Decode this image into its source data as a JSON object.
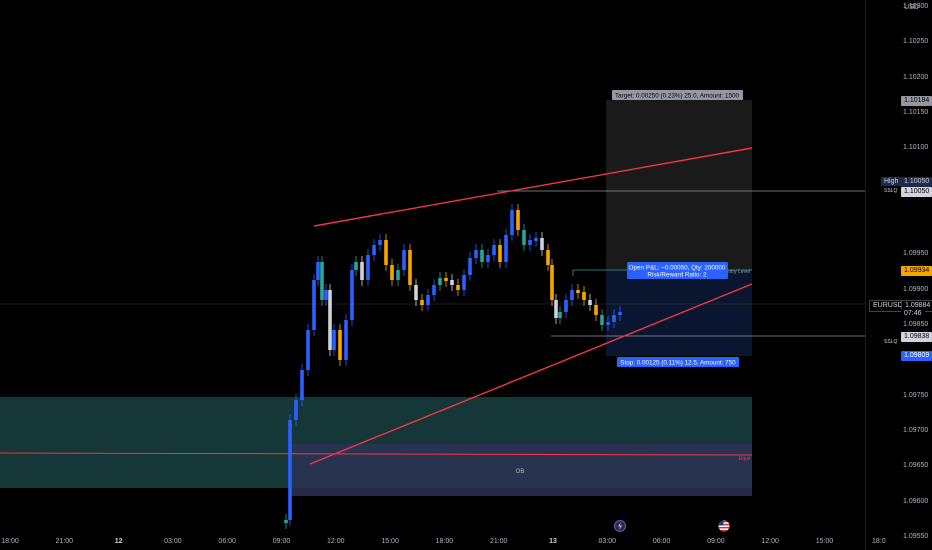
{
  "currency": "USD",
  "price_labels": [
    "1.10300",
    "1.10250",
    "1.10200",
    "1.10150",
    "1.10100",
    "1.09950",
    "1.09900",
    "1.09850",
    "1.09800",
    "1.09750",
    "1.09700",
    "1.09650",
    "1.09600",
    "1.09550"
  ],
  "price_values": [
    1.103,
    1.1025,
    1.102,
    1.1015,
    1.101,
    1.0995,
    1.099,
    1.0985,
    1.098,
    1.0975,
    1.097,
    1.0965,
    1.096,
    1.0955
  ],
  "time_labels": [
    {
      "text": "18:00",
      "bold": false,
      "slot": 0
    },
    {
      "text": "21:00",
      "bold": false,
      "slot": 1
    },
    {
      "text": "12",
      "bold": true,
      "slot": 2
    },
    {
      "text": "03:00",
      "bold": false,
      "slot": 3
    },
    {
      "text": "06:00",
      "bold": false,
      "slot": 4
    },
    {
      "text": "09:00",
      "bold": false,
      "slot": 5
    },
    {
      "text": "12:00",
      "bold": false,
      "slot": 6
    },
    {
      "text": "15:00",
      "bold": false,
      "slot": 7
    },
    {
      "text": "18:00",
      "bold": false,
      "slot": 8
    },
    {
      "text": "21:00",
      "bold": false,
      "slot": 9
    },
    {
      "text": "13",
      "bold": true,
      "slot": 10
    },
    {
      "text": "03:00",
      "bold": false,
      "slot": 11
    },
    {
      "text": "06:00",
      "bold": false,
      "slot": 12
    },
    {
      "text": "09:00",
      "bold": false,
      "slot": 13
    },
    {
      "text": "12:00",
      "bold": false,
      "slot": 14
    },
    {
      "text": "15:00",
      "bold": false,
      "slot": 15
    },
    {
      "text": "18:0",
      "bold": false,
      "slot": 16
    }
  ],
  "tags": {
    "target_price": "1.10184",
    "high_label": "High",
    "high_price": "1.10050",
    "ssl_top_short": "SSLQ",
    "high_line_price": "1.10050",
    "entry_price": "1.09934",
    "symbol": "EURUSD",
    "current_price": "1.09884",
    "countdown": "07:46",
    "sslq_price": "1.09838",
    "sslq_label": "SSLQ",
    "stop_price": "1.09809"
  },
  "position": {
    "target_text": "Target: 0.00250 (0.23%) 25.0, Amount: 1500",
    "open_pl_text": "Open P&L: −0.00050, Qty: 200000",
    "rr_text": "Risk/Reward Ratio: 2",
    "stop_text": "Stop: 0.00125 (0.11%) 12.5, Amount: 750",
    "entry_level_label": "Entry Level"
  },
  "zones": {
    "ob_label": "OB",
    "equilibrium_label": "Equil"
  },
  "colors": {
    "bull": "#2962ff",
    "bear": "#f7a600",
    "neutral": "#cfd2da",
    "teal_candle": "#26a69a",
    "trendline": "#f23645",
    "zone_teal": "#1a4a4a",
    "zone_purple": "#2a2f4f",
    "target_box": "#1e1e1e",
    "stop_box": "#0c1a3a",
    "entry_tag": "#f7a600",
    "tag_blue": "#2962ff"
  },
  "icons": [
    "lightning-icon",
    "us-flag-icon"
  ]
}
